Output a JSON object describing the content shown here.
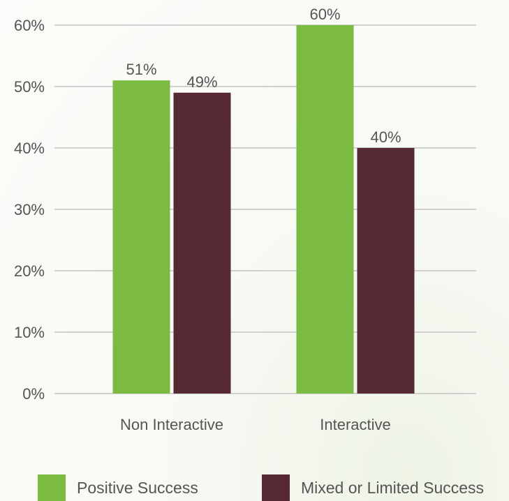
{
  "chart_data": {
    "type": "bar",
    "categories": [
      "Non Interactive",
      "Interactive"
    ],
    "series": [
      {
        "name": "Positive Success",
        "values": [
          51,
          60
        ],
        "labels": [
          "51%",
          "60%"
        ],
        "color": "#7cbb42"
      },
      {
        "name": "Mixed or Limited Success",
        "values": [
          49,
          40
        ],
        "labels": [
          "49%",
          "40%"
        ],
        "color": "#572a33"
      }
    ],
    "ylim": [
      0,
      60
    ],
    "yticks": [
      0,
      10,
      20,
      30,
      40,
      50,
      60
    ],
    "ytick_labels": [
      "0%",
      "10%",
      "20%",
      "30%",
      "40%",
      "50%",
      "60%"
    ],
    "grid": true,
    "legend_position": "bottom",
    "title": "",
    "xlabel": "",
    "ylabel": ""
  },
  "colors": {
    "gridline": "#d0d0d0",
    "text": "#555555"
  }
}
